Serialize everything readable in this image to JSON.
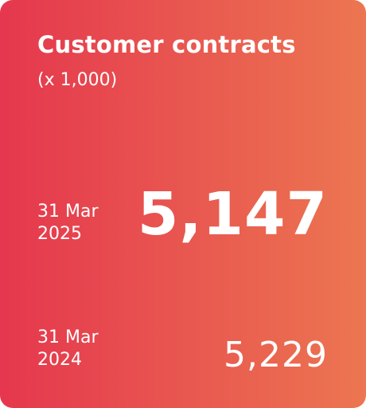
{
  "card": {
    "title": "Customer contracts",
    "unit": "(x 1,000)",
    "current": {
      "date_line1": "31 Mar",
      "date_line2": "2025",
      "value": "5,147"
    },
    "previous": {
      "date_line1": "31 Mar",
      "date_line2": "2024",
      "value": "5,229"
    },
    "colors": {
      "gradient_start": "#e5374e",
      "gradient_end": "#ec7651",
      "text": "#ffffff"
    }
  }
}
